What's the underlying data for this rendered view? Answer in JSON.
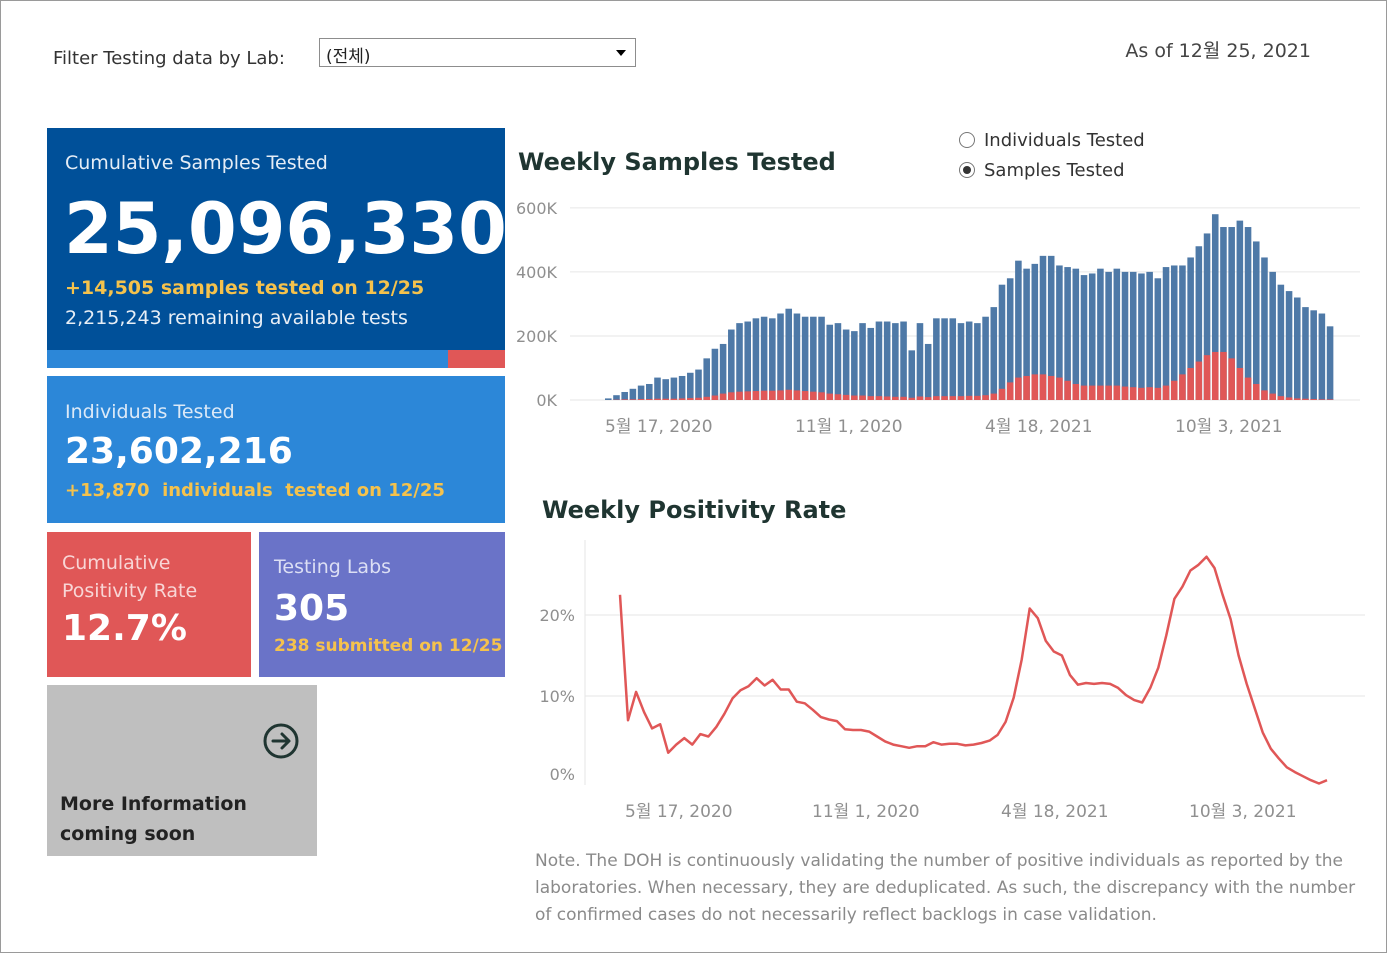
{
  "filter": {
    "label": "Filter Testing data by Lab:",
    "selected": "(전체)"
  },
  "as_of": "As of 12월 25, 2021",
  "cumulative": {
    "title": "Cumulative Samples Tested",
    "value": "25,096,330",
    "today": "+14,505 samples tested on 12/25",
    "remaining": "2,215,243 remaining available tests",
    "used_fraction": 0.875
  },
  "individuals": {
    "title": "Individuals Tested",
    "value": "23,602,216",
    "today": "+13,870  individuals  tested on 12/25"
  },
  "positivity": {
    "title": "Cumulative Positivity Rate",
    "value": "12.7%"
  },
  "labs": {
    "title": "Testing Labs",
    "value": "305",
    "today": "238 submitted on 12/25"
  },
  "more_info": {
    "text": "More Information coming soon",
    "icon": "circle-arrow-right-icon"
  },
  "toggle": {
    "options": [
      {
        "label": "Individuals Tested",
        "selected": false
      },
      {
        "label": "Samples Tested",
        "selected": true
      }
    ]
  },
  "colors": {
    "dark_blue": "#005099",
    "blue": "#2c87d8",
    "red": "#e05757",
    "purple": "#6a73c8",
    "gray": "#bfbfbf",
    "bar_blue": "#4e79a7",
    "accent_yellow": "#f5c24c"
  },
  "note": "Note. The DOH is continuously validating the number of positive individuals as reported by the laboratories. When necessary, they are deduplicated. As such, the discrepancy with the number of confirmed cases do not necessarily reflect backlogs in case validation.",
  "chart_data": [
    {
      "type": "bar",
      "title": "Weekly Samples Tested",
      "stacked": true,
      "x_tick_labels": [
        "5월 17, 2020",
        "11월 1, 2020",
        "4월 18, 2021",
        "10월 3, 2021"
      ],
      "y_tick_labels": [
        "0K",
        "200K",
        "400K",
        "600K"
      ],
      "ylim": [
        0,
        640000
      ],
      "grid": true,
      "series": [
        {
          "color": "#4e79a7",
          "values": [
            5000,
            15000,
            25000,
            35000,
            45000,
            50000,
            70000,
            65000,
            70000,
            75000,
            85000,
            95000,
            130000,
            160000,
            175000,
            220000,
            240000,
            245000,
            255000,
            260000,
            255000,
            270000,
            285000,
            270000,
            260000,
            260000,
            260000,
            235000,
            240000,
            220000,
            215000,
            240000,
            225000,
            245000,
            245000,
            240000,
            245000,
            155000,
            240000,
            175000,
            255000,
            255000,
            255000,
            240000,
            245000,
            240000,
            260000,
            290000,
            360000,
            380000,
            435000,
            410000,
            425000,
            450000,
            450000,
            420000,
            415000,
            410000,
            390000,
            395000,
            410000,
            400000,
            410000,
            400000,
            400000,
            395000,
            400000,
            380000,
            415000,
            420000,
            420000,
            445000,
            480000,
            520000,
            580000,
            540000,
            540000,
            560000,
            540000,
            495000,
            445000,
            400000,
            360000,
            340000,
            320000,
            290000,
            280000,
            270000,
            230000
          ],
          "note": "total weekly samples (incl. positive share)"
        },
        {
          "color": "#e05757",
          "values": [
            0,
            1000,
            2000,
            2000,
            3000,
            3000,
            4000,
            4000,
            4000,
            5000,
            6000,
            7000,
            10000,
            14000,
            20000,
            24000,
            26000,
            27000,
            28000,
            29000,
            29000,
            30000,
            32000,
            30000,
            28000,
            26000,
            24000,
            20000,
            18000,
            16000,
            14000,
            14000,
            12000,
            12000,
            11000,
            10000,
            10000,
            7000,
            11000,
            9000,
            12000,
            12000,
            12000,
            12000,
            13000,
            13000,
            15000,
            20000,
            35000,
            55000,
            70000,
            75000,
            80000,
            80000,
            75000,
            70000,
            60000,
            50000,
            45000,
            45000,
            45000,
            45000,
            45000,
            42000,
            40000,
            38000,
            40000,
            38000,
            45000,
            60000,
            80000,
            100000,
            120000,
            140000,
            150000,
            150000,
            130000,
            100000,
            70000,
            50000,
            30000,
            20000,
            12000,
            8000,
            5000,
            4000,
            3000,
            2000,
            2000
          ],
          "note": "positive samples"
        }
      ]
    },
    {
      "type": "line",
      "title": "Weekly Positivity Rate",
      "x_tick_labels": [
        "5월 17, 2020",
        "11월 1, 2020",
        "4월 18, 2021",
        "10월 3, 2021"
      ],
      "y_tick_labels": [
        "0%",
        "10%",
        "20%"
      ],
      "ylim": [
        0,
        30
      ],
      "grid": true,
      "series": [
        {
          "color": "#e05757",
          "values": [
            22.5,
            7.0,
            10.5,
            8.0,
            6.0,
            6.5,
            3.0,
            4.0,
            4.8,
            4.0,
            5.3,
            5.0,
            6.2,
            7.8,
            9.7,
            10.7,
            11.2,
            12.2,
            11.3,
            12.0,
            10.8,
            10.8,
            9.3,
            9.1,
            8.3,
            7.4,
            7.1,
            6.9,
            5.9,
            5.8,
            5.8,
            5.6,
            5.0,
            4.4,
            4.0,
            3.8,
            3.6,
            3.8,
            3.8,
            4.3,
            4.0,
            4.1,
            4.1,
            3.9,
            4.0,
            4.2,
            4.5,
            5.2,
            6.8,
            9.8,
            14.5,
            20.8,
            19.6,
            16.8,
            15.5,
            15.0,
            12.6,
            11.4,
            11.6,
            11.5,
            11.6,
            11.5,
            11.0,
            10.1,
            9.5,
            9.2,
            11.0,
            13.5,
            17.5,
            22.0,
            23.5,
            25.5,
            26.2,
            27.2,
            25.8,
            22.5,
            19.5,
            15.0,
            11.5,
            8.5,
            5.5,
            3.5,
            2.3,
            1.2,
            0.6,
            0.1,
            -0.4,
            -0.8,
            -0.4
          ]
        }
      ]
    }
  ]
}
